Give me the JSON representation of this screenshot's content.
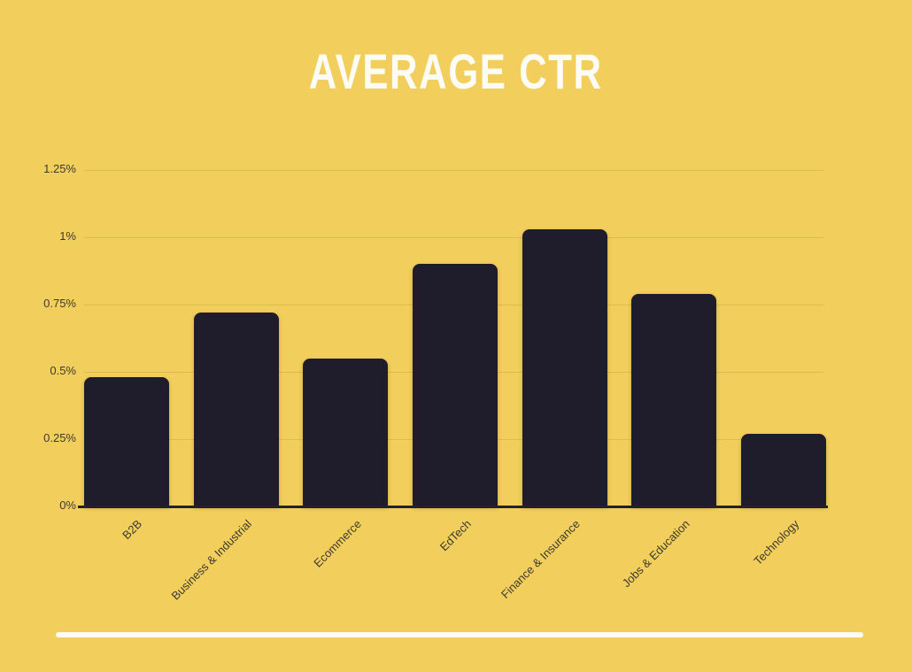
{
  "title": "AVERAGE CTR",
  "colors": {
    "background": "#f2cf5c",
    "bar": "#1f1d2b",
    "title_text": "#fcfbf5",
    "axis_label": "#3d3a30",
    "gridline": "#d9bc55",
    "axis_line": "#23212e",
    "underline": "#fbfaf4"
  },
  "chart_data": {
    "type": "bar",
    "title": "AVERAGE CTR",
    "categories": [
      "B2B",
      "Business & Industrial",
      "Ecommerce",
      "EdTech",
      "Finance & Insurance",
      "Jobs & Education",
      "Technology"
    ],
    "values": [
      0.48,
      0.72,
      0.55,
      0.9,
      1.03,
      0.79,
      0.27
    ],
    "unit": "%",
    "xlabel": "",
    "ylabel": "",
    "ylim": [
      0,
      1.25
    ],
    "y_ticks": [
      "0%",
      "0.25%",
      "0.5%",
      "0.75%",
      "1%",
      "1.25%"
    ],
    "y_tick_values": [
      0,
      0.25,
      0.5,
      0.75,
      1,
      1.25
    ],
    "grid": true,
    "legend": false,
    "x_label_rotation_deg": -45
  }
}
